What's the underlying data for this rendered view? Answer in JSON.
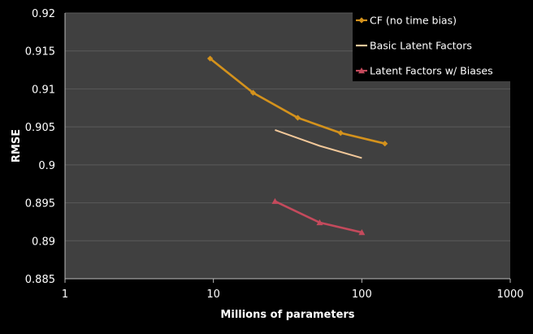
{
  "chart_data": {
    "type": "line",
    "title": "",
    "xlabel": "Millions of parameters",
    "ylabel": "RMSE",
    "x_scale": "log",
    "xlim": [
      1,
      1000
    ],
    "ylim": [
      0.885,
      0.92
    ],
    "x_ticks": [
      1,
      10,
      100,
      1000
    ],
    "x_tick_labels": [
      "1",
      "10",
      "100",
      "1000"
    ],
    "y_ticks": [
      0.885,
      0.89,
      0.895,
      0.9,
      0.905,
      0.91,
      0.915,
      0.92
    ],
    "y_tick_labels": [
      "0.885",
      "0.89",
      "0.895",
      "0.9",
      "0.905",
      "0.91",
      "0.915",
      "0.92"
    ],
    "grid": true,
    "legend_position": "top-right",
    "colors": {
      "plot_background": "#404040",
      "gridline": "#5a5a5a",
      "page_background": "#000000"
    },
    "series": [
      {
        "name": "CF (no time bias)",
        "color": "#d4921c",
        "marker": "diamond",
        "x": [
          9.5,
          18.5,
          37,
          72,
          143
        ],
        "y": [
          0.914,
          0.9095,
          0.9062,
          0.9042,
          0.9028
        ]
      },
      {
        "name": "Basic Latent Factors",
        "color": "#f2c89a",
        "marker": "none",
        "x": [
          26,
          52,
          100
        ],
        "y": [
          0.9046,
          0.9025,
          0.9009
        ]
      },
      {
        "name": "Latent Factors w/ Biases",
        "color": "#c44a5c",
        "marker": "triangle",
        "x": [
          26,
          52,
          100
        ],
        "y": [
          0.8952,
          0.8924,
          0.8911
        ]
      }
    ]
  }
}
